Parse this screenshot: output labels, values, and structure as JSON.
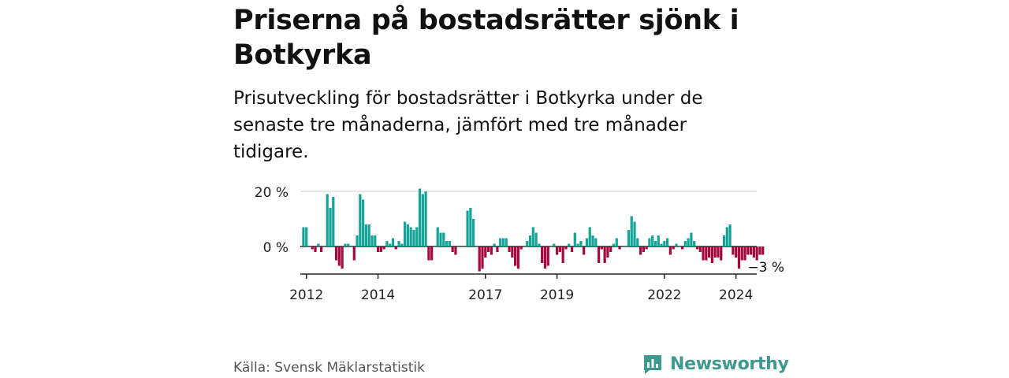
{
  "header": {
    "title": "Priserna på bostadsrätter sjönk i Botkyrka",
    "subtitle": "Prisutveckling för bostadsrätter i Botkyrka under de senaste tre månaderna, jämfört med tre månader tidigare."
  },
  "footer": {
    "source": "Källa: Svensk Mäklarstatistik",
    "brand": "Newsworthy"
  },
  "colors": {
    "positive": "#17a398",
    "negative": "#a3093e",
    "grid": "#dddddd",
    "axis": "#222222",
    "brand": "#3d9a8e"
  },
  "chart_data": {
    "type": "bar",
    "title": "Priserna på bostadsrätter sjönk i Botkyrka",
    "xlabel": "",
    "ylabel": "",
    "y_unit": "%",
    "ylim": [
      -10,
      21
    ],
    "yticks": [
      {
        "value": 0,
        "label": "0 %"
      },
      {
        "value": 20,
        "label": "20 %"
      }
    ],
    "x_start": 2011.83,
    "x_end": 2024.58,
    "xticks": [
      {
        "value": 2012,
        "label": "2012"
      },
      {
        "value": 2014,
        "label": "2014"
      },
      {
        "value": 2017,
        "label": "2017"
      },
      {
        "value": 2019,
        "label": "2019"
      },
      {
        "value": 2022,
        "label": "2022"
      },
      {
        "value": 2024,
        "label": "2024"
      }
    ],
    "start_year": 2011,
    "start_month": 12,
    "series": [
      {
        "name": "Prisutveckling (%)",
        "values": [
          7,
          7,
          0,
          -1,
          -2,
          1,
          -2,
          0,
          19,
          14,
          18,
          -5,
          -7,
          -8,
          1,
          1,
          0,
          -5,
          4,
          19,
          17,
          8,
          8,
          4,
          4,
          -2,
          -2,
          -1,
          2,
          1,
          3,
          -1,
          2,
          1,
          9,
          8,
          7,
          6,
          7,
          21,
          19,
          20,
          -5,
          -5,
          0,
          7,
          5,
          5,
          2,
          2,
          -2,
          -3,
          0,
          0,
          0,
          13,
          14,
          10,
          0,
          -9,
          -8,
          -4,
          -2,
          -3,
          1,
          -2,
          3,
          3,
          3,
          -2,
          -4,
          -7,
          -8,
          -1,
          0,
          2,
          4,
          7,
          5,
          1,
          -6,
          -8,
          -7,
          0,
          1,
          -3,
          -2,
          -6,
          -1,
          1,
          -2,
          5,
          1,
          2,
          -3,
          3,
          7,
          4,
          3,
          -6,
          -1,
          -6,
          -4,
          -2,
          1,
          3,
          -1,
          0,
          0,
          6,
          11,
          9,
          3,
          -3,
          -2,
          -1,
          3,
          4,
          2,
          4,
          1,
          2,
          3,
          -3,
          -1,
          1,
          0,
          -1,
          2,
          3,
          5,
          2,
          -1,
          -2,
          -5,
          -5,
          -4,
          -6,
          -4,
          -4,
          -5,
          4,
          7,
          8,
          -3,
          -4,
          -8,
          -5,
          -5,
          -3,
          -3,
          -4,
          -5,
          -3,
          -3
        ],
        "end_label": "−3 %"
      }
    ]
  }
}
